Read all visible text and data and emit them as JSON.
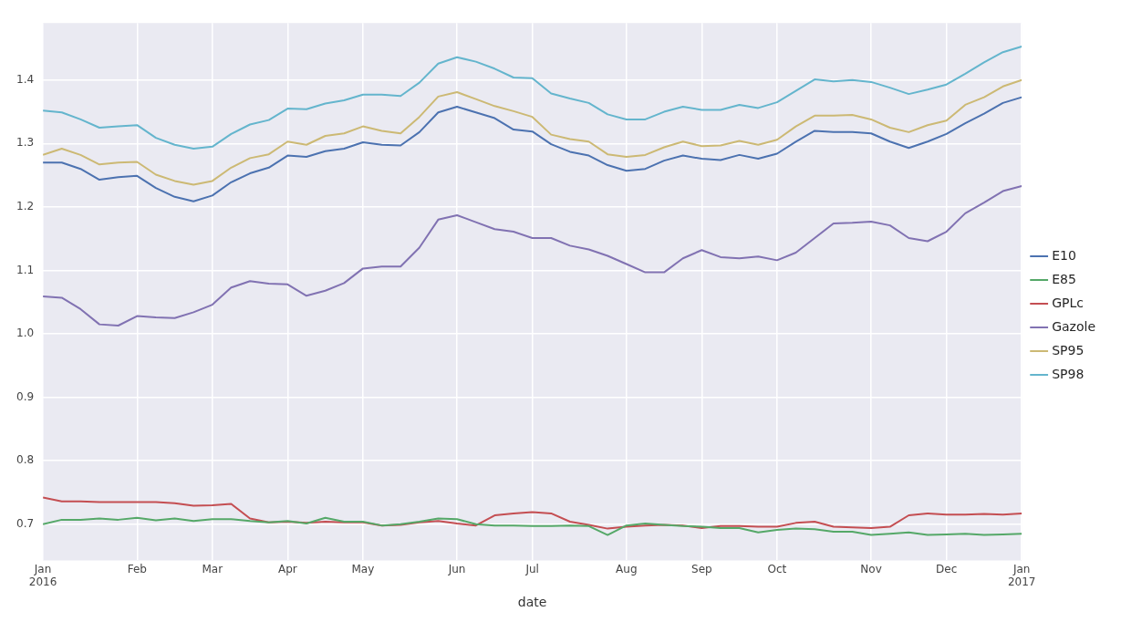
{
  "chart_data": {
    "type": "line",
    "xlabel": "date",
    "x": [
      "2016-01-03",
      "2016-01-10",
      "2016-01-17",
      "2016-01-24",
      "2016-01-31",
      "2016-02-07",
      "2016-02-14",
      "2016-02-21",
      "2016-02-28",
      "2016-03-06",
      "2016-03-13",
      "2016-03-20",
      "2016-03-27",
      "2016-04-03",
      "2016-04-10",
      "2016-04-17",
      "2016-04-24",
      "2016-05-01",
      "2016-05-08",
      "2016-05-15",
      "2016-05-22",
      "2016-05-29",
      "2016-06-05",
      "2016-06-12",
      "2016-06-19",
      "2016-06-26",
      "2016-07-03",
      "2016-07-10",
      "2016-07-17",
      "2016-07-24",
      "2016-07-31",
      "2016-08-07",
      "2016-08-14",
      "2016-08-21",
      "2016-08-28",
      "2016-09-04",
      "2016-09-11",
      "2016-09-18",
      "2016-09-25",
      "2016-10-02",
      "2016-10-09",
      "2016-10-16",
      "2016-10-23",
      "2016-10-30",
      "2016-11-06",
      "2016-11-13",
      "2016-11-20",
      "2016-11-27",
      "2016-12-04",
      "2016-12-11",
      "2016-12-18",
      "2016-12-25",
      "2017-01-01"
    ],
    "xlim": [
      "2016-01-03",
      "2017-01-01"
    ],
    "xticks": [
      {
        "value": "2016-01-03",
        "label": "Jan\n2016"
      },
      {
        "value": "2016-02-07",
        "label": "Feb"
      },
      {
        "value": "2016-03-06",
        "label": "Mar"
      },
      {
        "value": "2016-04-03",
        "label": "Apr"
      },
      {
        "value": "2016-05-01",
        "label": "May"
      },
      {
        "value": "2016-06-05",
        "label": "Jun"
      },
      {
        "value": "2016-07-03",
        "label": "Jul"
      },
      {
        "value": "2016-08-07",
        "label": "Aug"
      },
      {
        "value": "2016-09-04",
        "label": "Sep"
      },
      {
        "value": "2016-10-02",
        "label": "Oct"
      },
      {
        "value": "2016-11-06",
        "label": "Nov"
      },
      {
        "value": "2016-12-04",
        "label": "Dec"
      },
      {
        "value": "2017-01-01",
        "label": "Jan\n2017"
      }
    ],
    "ylim": [
      0.643,
      1.49
    ],
    "yticks": [
      0.7,
      0.8,
      0.9,
      {
        "value": 1,
        "label": "1.0"
      },
      1.1,
      1.2,
      1.3,
      1.4
    ],
    "grid": true,
    "legend": "right",
    "marker": "none",
    "line_style": "solid",
    "series": [
      {
        "name": "E10",
        "color": "#4c72b0",
        "values": [
          1.27,
          1.27,
          1.26,
          1.243,
          1.247,
          1.249,
          1.23,
          1.216,
          1.209,
          1.218,
          1.239,
          1.253,
          1.262,
          1.281,
          1.279,
          1.288,
          1.292,
          1.302,
          1.298,
          1.297,
          1.318,
          1.349,
          1.358,
          1.349,
          1.34,
          1.322,
          1.319,
          1.299,
          1.287,
          1.281,
          1.266,
          1.257,
          1.26,
          1.273,
          1.281,
          1.276,
          1.274,
          1.282,
          1.276,
          1.284,
          1.303,
          1.32,
          1.318,
          1.318,
          1.316,
          1.303,
          1.293,
          1.303,
          1.315,
          1.332,
          1.347,
          1.364,
          1.373
        ]
      },
      {
        "name": "E85",
        "color": "#55a868",
        "values": [
          0.7,
          0.707,
          0.707,
          0.709,
          0.707,
          0.71,
          0.706,
          0.709,
          0.705,
          0.708,
          0.708,
          0.705,
          0.703,
          0.705,
          0.701,
          0.71,
          0.704,
          0.704,
          0.698,
          0.7,
          0.704,
          0.709,
          0.708,
          0.7,
          0.698,
          0.698,
          0.697,
          0.697,
          0.698,
          0.697,
          0.683,
          0.698,
          0.701,
          0.699,
          0.697,
          0.696,
          0.694,
          0.694,
          0.687,
          0.691,
          0.693,
          0.692,
          0.688,
          0.688,
          0.683,
          0.685,
          0.687,
          0.683,
          0.684,
          0.685,
          0.683,
          0.684,
          0.685
        ]
      },
      {
        "name": "GPLc",
        "color": "#c44e52",
        "values": [
          0.742,
          0.736,
          0.736,
          0.735,
          0.735,
          0.735,
          0.735,
          0.733,
          0.729,
          0.73,
          0.732,
          0.709,
          0.703,
          0.704,
          0.702,
          0.704,
          0.703,
          0.703,
          0.698,
          0.699,
          0.703,
          0.705,
          0.701,
          0.698,
          0.714,
          0.717,
          0.719,
          0.717,
          0.704,
          0.699,
          0.693,
          0.696,
          0.698,
          0.699,
          0.698,
          0.694,
          0.697,
          0.697,
          0.696,
          0.696,
          0.702,
          0.704,
          0.696,
          0.695,
          0.694,
          0.696,
          0.714,
          0.717,
          0.715,
          0.715,
          0.716,
          0.715,
          0.717
        ]
      },
      {
        "name": "Gazole",
        "color": "#8172b2",
        "values": [
          1.059,
          1.057,
          1.039,
          1.015,
          1.013,
          1.028,
          1.026,
          1.025,
          1.034,
          1.046,
          1.073,
          1.083,
          1.079,
          1.078,
          1.06,
          1.068,
          1.08,
          1.103,
          1.106,
          1.106,
          1.136,
          1.18,
          1.187,
          1.176,
          1.165,
          1.161,
          1.151,
          1.151,
          1.139,
          1.133,
          1.123,
          1.11,
          1.097,
          1.097,
          1.119,
          1.132,
          1.121,
          1.119,
          1.122,
          1.116,
          1.128,
          1.151,
          1.174,
          1.175,
          1.177,
          1.171,
          1.151,
          1.146,
          1.161,
          1.19,
          1.207,
          1.225,
          1.233
        ]
      },
      {
        "name": "SP95",
        "color": "#ccb974",
        "values": [
          1.282,
          1.292,
          1.282,
          1.267,
          1.27,
          1.271,
          1.251,
          1.241,
          1.235,
          1.241,
          1.262,
          1.277,
          1.283,
          1.303,
          1.298,
          1.312,
          1.316,
          1.327,
          1.32,
          1.316,
          1.342,
          1.374,
          1.381,
          1.37,
          1.359,
          1.351,
          1.342,
          1.314,
          1.307,
          1.303,
          1.283,
          1.279,
          1.282,
          1.294,
          1.303,
          1.296,
          1.297,
          1.304,
          1.298,
          1.306,
          1.327,
          1.344,
          1.344,
          1.345,
          1.338,
          1.325,
          1.318,
          1.329,
          1.336,
          1.361,
          1.373,
          1.39,
          1.4
        ]
      },
      {
        "name": "SP98",
        "color": "#64b5cd",
        "values": [
          1.352,
          1.349,
          1.338,
          1.325,
          1.327,
          1.329,
          1.309,
          1.298,
          1.292,
          1.295,
          1.315,
          1.33,
          1.337,
          1.355,
          1.354,
          1.363,
          1.368,
          1.377,
          1.377,
          1.375,
          1.396,
          1.426,
          1.436,
          1.429,
          1.418,
          1.404,
          1.403,
          1.379,
          1.371,
          1.364,
          1.346,
          1.338,
          1.338,
          1.35,
          1.358,
          1.353,
          1.353,
          1.361,
          1.356,
          1.365,
          1.383,
          1.401,
          1.398,
          1.4,
          1.397,
          1.388,
          1.378,
          1.385,
          1.393,
          1.41,
          1.428,
          1.444,
          1.453
        ]
      }
    ]
  }
}
